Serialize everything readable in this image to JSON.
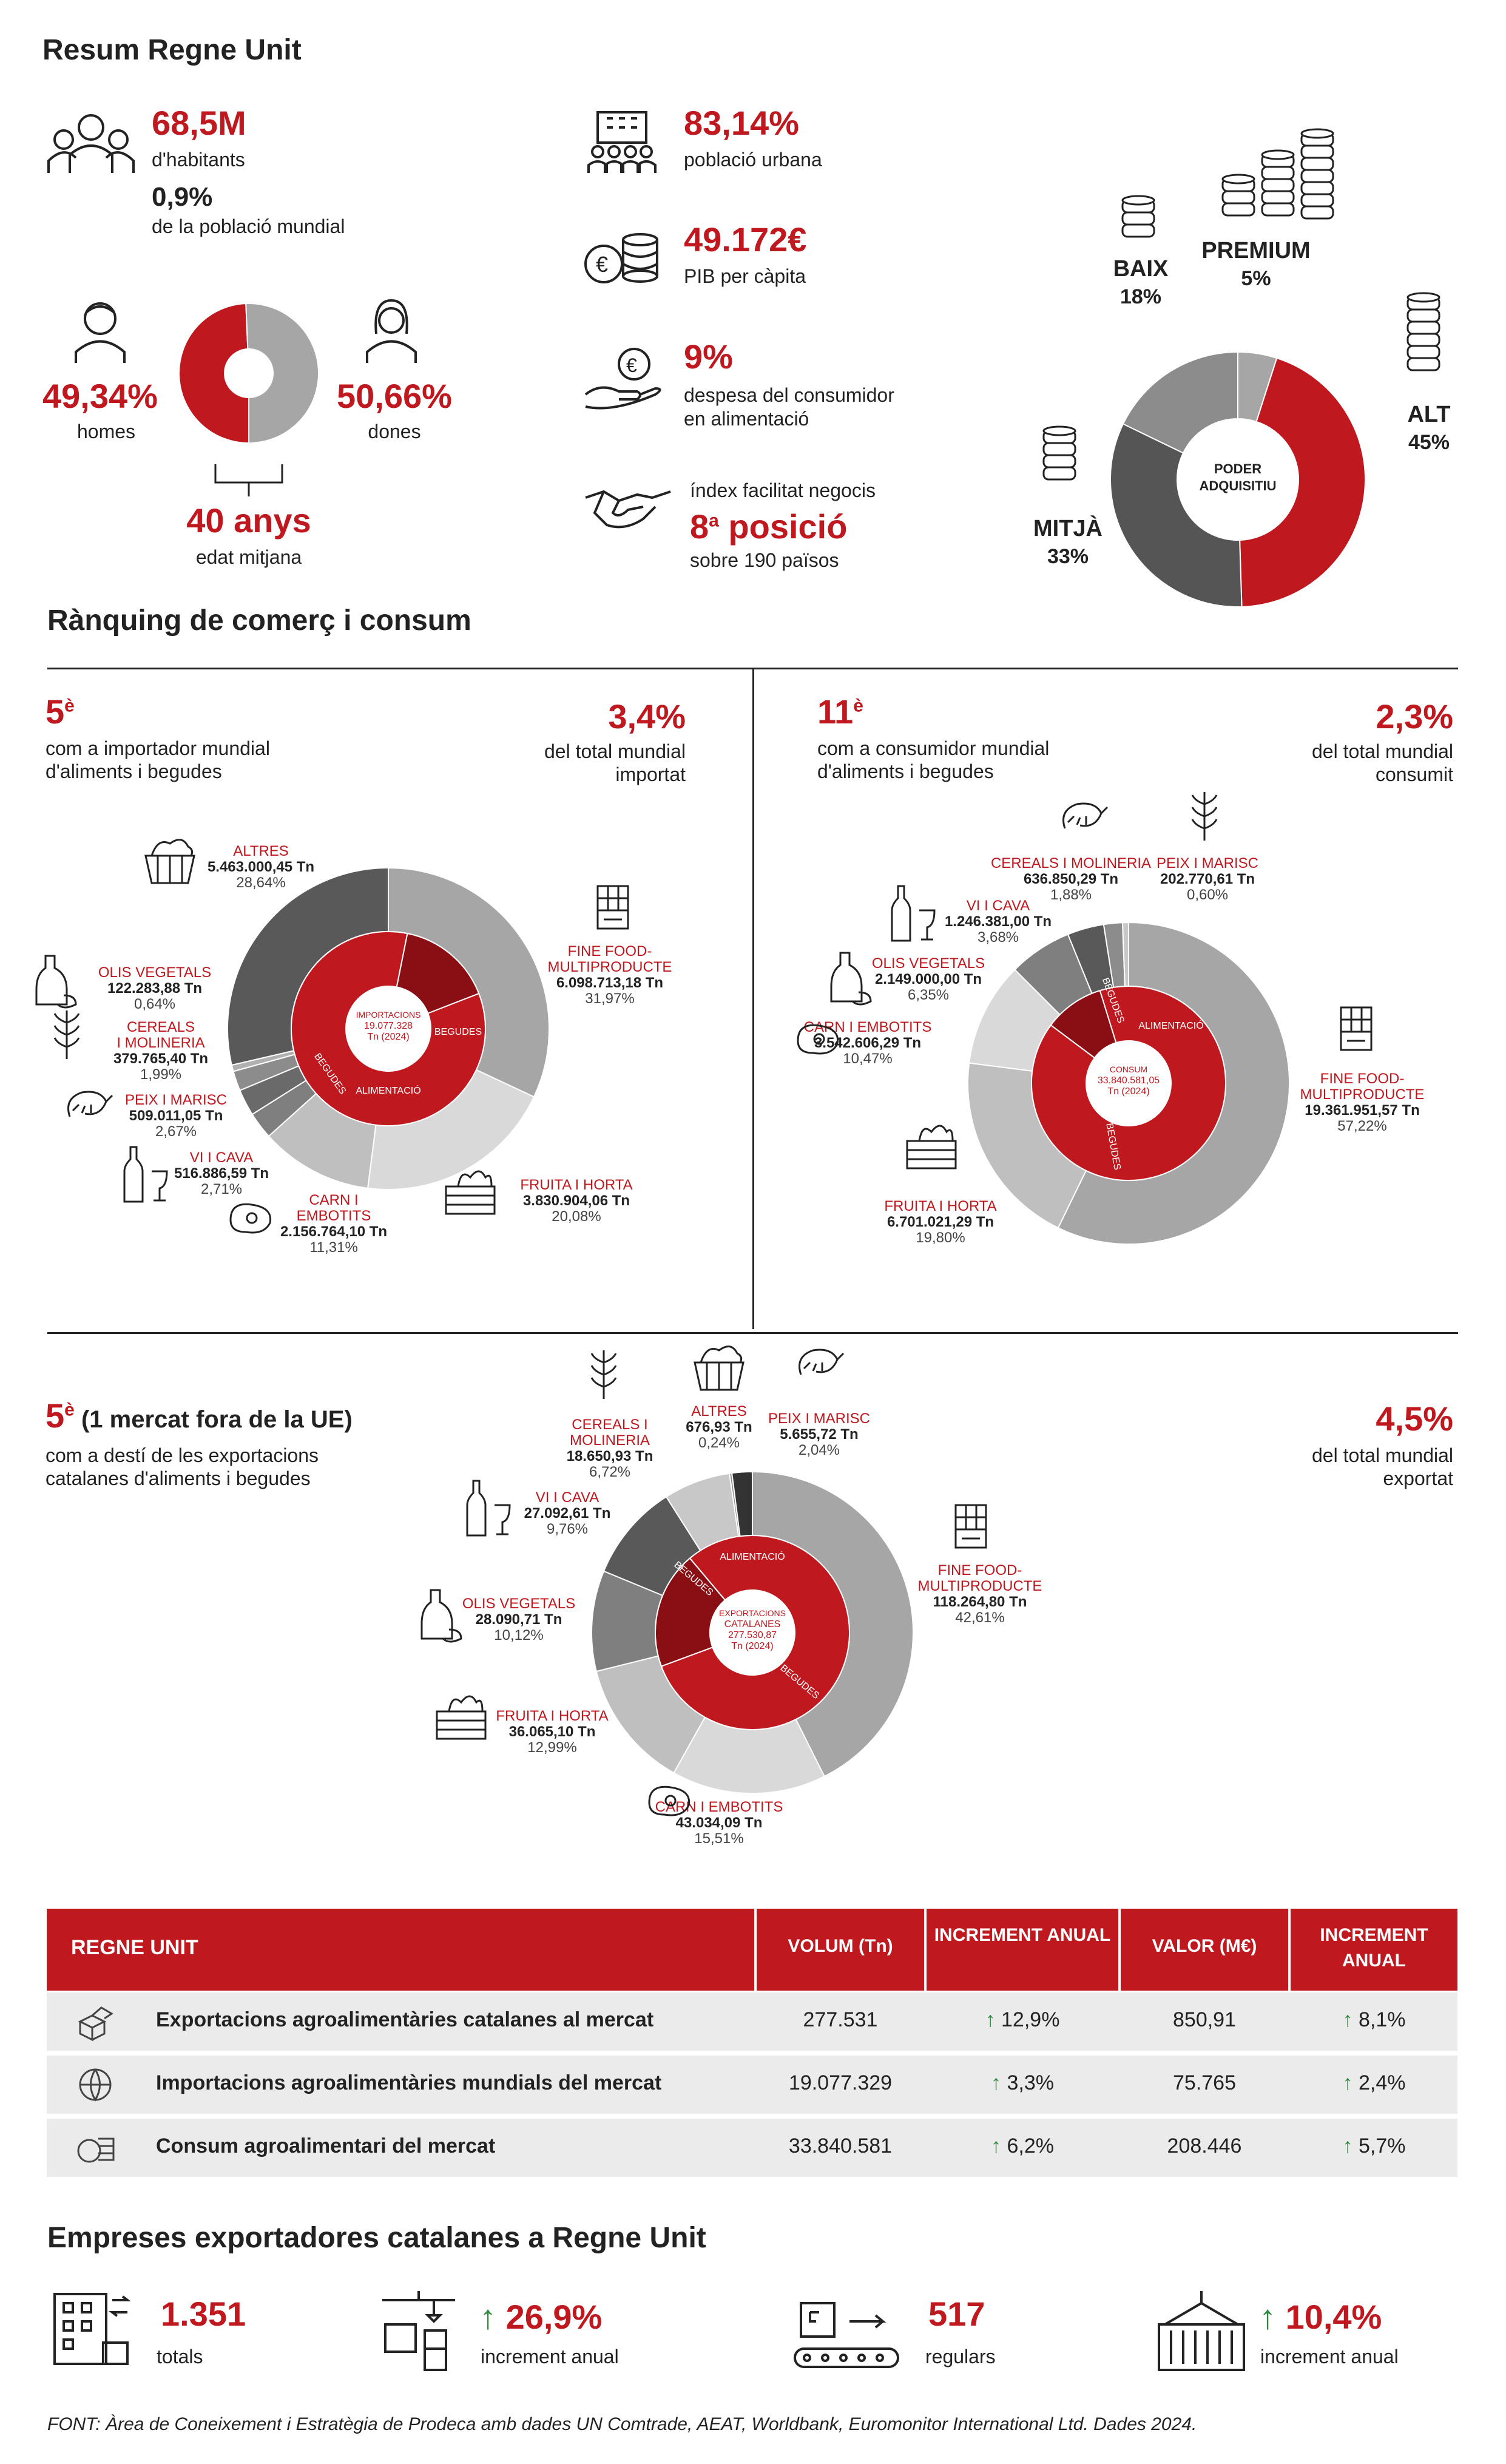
{
  "summary": {
    "title": "Resum Regne Unit",
    "habitants": {
      "value": "68,5M",
      "label": "d'habitants"
    },
    "world_share": {
      "value": "0,9%",
      "label": "de la població mundial"
    },
    "men": {
      "value": "49,34%",
      "label": "homes"
    },
    "women": {
      "value": "50,66%",
      "label": "dones"
    },
    "age": {
      "value": "40 anys",
      "label": "edat mitjana"
    },
    "urban": {
      "value": "83,14%",
      "label": "població urbana"
    },
    "gdp": {
      "value": "49.172€",
      "label": "PIB per càpita"
    },
    "food_spend": {
      "value": "9%",
      "label1": "despesa del consumidor",
      "label2": "en alimentació"
    },
    "business": {
      "label_top": "índex facilitat negocis",
      "value": "8",
      "sup": "a",
      "value_rest": " posició",
      "label": "sobre 190 països"
    }
  },
  "ranking": {
    "title": "Rànquing de comerç i consum",
    "imports": {
      "rank": "5",
      "sup": "è",
      "label1": "com a importador mundial",
      "label2": "d'aliments i begudes",
      "share": "3,4%",
      "share_l1": "del total mundial",
      "share_l2": "importat"
    },
    "consumption": {
      "rank": "11",
      "sup": "è",
      "label1": "com a consumidor mundial",
      "label2": "d'aliments i begudes",
      "share": "2,3%",
      "share_l1": "del total mundial",
      "share_l2": "consumit"
    },
    "exports": {
      "rank": "5",
      "sup": "è",
      "rank_rest": " (1 mercat fora de la UE)",
      "label1": "com a destí de les exportacions",
      "label2": "catalanes d'aliments i begudes",
      "share": "4,5%",
      "share_l1": "del total mundial",
      "share_l2": "exportat"
    }
  },
  "chart_data": [
    {
      "type": "pie",
      "title": "PODER ADQUISITIU",
      "categories": [
        "PREMIUM",
        "ALT",
        "MITJÀ",
        "BAIX"
      ],
      "values": [
        5,
        45,
        33,
        18
      ],
      "labels": [
        "5%",
        "45%",
        "33%",
        "18%"
      ],
      "colors": [
        "#a6a6a6",
        "#c0181f",
        "#555555",
        "#8c8c8c"
      ]
    },
    {
      "type": "pie",
      "title": "Homes / Dones",
      "categories": [
        "homes",
        "dones"
      ],
      "values": [
        49.34,
        50.66
      ],
      "colors": [
        "#c0181f",
        "#a6a6a6"
      ]
    },
    {
      "type": "pie",
      "center": [
        "IMPORTACIONS",
        "19.077.328",
        "Tn (2024)"
      ],
      "inner": [
        {
          "name": "ALIMENTACIÓ",
          "value": 84.05
        },
        {
          "name": "BEGUDES",
          "value": 15.95
        }
      ],
      "categories": [
        "FINE FOOD-MULTIPRODUCTE",
        "FRUITA I HORTA",
        "CARN I EMBOTITS",
        "VI I CAVA",
        "PEIX I MARISC",
        "CEREALS I MOLINERIA",
        "OLIS VEGETALS",
        "ALTRES"
      ],
      "values": [
        31.97,
        20.08,
        11.31,
        2.71,
        2.67,
        1.99,
        0.64,
        28.64
      ],
      "tonnes": [
        "6.098.713,18 Tn",
        "3.830.904,06 Tn",
        "2.156.764,10 Tn",
        "516.886,59 Tn",
        "509.011,05 Tn",
        "379.765,40 Tn",
        "122.283,88 Tn",
        "5.463.000,45 Tn"
      ],
      "pct_labels": [
        "31,97%",
        "20,08%",
        "11,31%",
        "2,71%",
        "2,67%",
        "1,99%",
        "0,64%",
        "28,64%"
      ],
      "colors": [
        "#a6a6a6",
        "#d9d9d9",
        "#bfbfbf",
        "#7f7f7f",
        "#6a6a6a",
        "#8c8c8c",
        "#b0b0b0",
        "#595959"
      ]
    },
    {
      "type": "pie",
      "center": [
        "CONSUM",
        "33.840.581,05",
        "Tn (2024)"
      ],
      "inner": [
        {
          "name": "ALIMENTACIÓ",
          "value": 90
        },
        {
          "name": "BEGUDES",
          "value": 10
        }
      ],
      "categories": [
        "FINE FOOD-MULTIPRODUCTE",
        "FRUITA I HORTA",
        "CARN I EMBOTITS",
        "OLIS VEGETALS",
        "VI I CAVA",
        "CEREALS I MOLINERIA",
        "PEIX I MARISC"
      ],
      "values": [
        57.22,
        19.8,
        10.47,
        6.35,
        3.68,
        1.88,
        0.6
      ],
      "tonnes": [
        "19.361.951,57 Tn",
        "6.701.021,29 Tn",
        "3.542.606,29 Tn",
        "2.149.000,00 Tn",
        "1.246.381,00 Tn",
        "636.850,29 Tn",
        "202.770,61 Tn"
      ],
      "pct_labels": [
        "57,22%",
        "19,80%",
        "10,47%",
        "6,35%",
        "3,68%",
        "1,88%",
        "0,60%"
      ],
      "colors": [
        "#a6a6a6",
        "#bfbfbf",
        "#d9d9d9",
        "#7f7f7f",
        "#595959",
        "#8c8c8c",
        "#c8c8c8"
      ]
    },
    {
      "type": "pie",
      "center": [
        "EXPORTACIONS",
        "CATALANES",
        "277.530,87",
        "Tn (2024)"
      ],
      "inner": [
        {
          "name": "ALIMENTACIÓ",
          "value": 80.5
        },
        {
          "name": "BEGUDES",
          "value": 19.5
        }
      ],
      "categories": [
        "FINE FOOD-MULTIPRODUCTE",
        "CARN I EMBOTITS",
        "FRUITA I HORTA",
        "OLIS VEGETALS",
        "VI I CAVA",
        "CEREALS I MOLINERIA",
        "ALTRES",
        "PEIX I MARISC"
      ],
      "values": [
        42.61,
        15.51,
        12.99,
        10.12,
        9.76,
        6.72,
        0.24,
        2.04
      ],
      "tonnes": [
        "118.264,80 Tn",
        "43.034,09 Tn",
        "36.065,10 Tn",
        "28.090,71 Tn",
        "27.092,61 Tn",
        "18.650,93 Tn",
        "676,93 Tn",
        "5.655,72 Tn"
      ],
      "pct_labels": [
        "42,61%",
        "15,51%",
        "12,99%",
        "10,12%",
        "9,76%",
        "6,72%",
        "0,24%",
        "2,04%"
      ],
      "colors": [
        "#a6a6a6",
        "#d9d9d9",
        "#bfbfbf",
        "#7f7f7f",
        "#595959",
        "#c8c8c8",
        "#8c8c8c",
        "#333333"
      ]
    }
  ],
  "table": {
    "headers": [
      "REGNE UNIT",
      "VOLUM (Tn)",
      "INCREMENT ANUAL",
      "VALOR (M€)",
      "INCREMENT ANUAL"
    ],
    "rows": [
      {
        "label": "Exportacions agroalimentàries catalanes al mercat",
        "volum": "277.531",
        "inc1": "12,9%",
        "valor": "850,91",
        "inc2": "8,1%"
      },
      {
        "label": "Importacions agroalimentàries mundials del mercat",
        "volum": "19.077.329",
        "inc1": "3,3%",
        "valor": "75.765",
        "inc2": "2,4%"
      },
      {
        "label": "Consum agroalimentari del mercat",
        "volum": "33.840.581",
        "inc1": "6,2%",
        "valor": "208.446",
        "inc2": "5,7%"
      }
    ]
  },
  "companies": {
    "title": "Empreses exportadores catalanes a Regne Unit",
    "total": {
      "value": "1.351",
      "label": "totals"
    },
    "growth": {
      "value": "26,9%",
      "label": "increment anual"
    },
    "regular": {
      "value": "517",
      "label": "regulars"
    },
    "regular_growth": {
      "value": "10,4%",
      "label": "increment anual"
    }
  },
  "source": "FONT:  Àrea de Coneixement i Estratègia de Prodeca amb dades UN Comtrade, AEAT, Worldbank, Euromonitor International Ltd. Dades  2024.",
  "labels": {
    "poder": [
      "PODER",
      "ADQUISITIU"
    ],
    "premium": "PREMIUM",
    "alt": "ALT",
    "mitja": "MITJÀ",
    "baix": "BAIX",
    "premium_pct": "5%",
    "alt_pct": "45%",
    "mitja_pct": "33%",
    "baix_pct": "18%",
    "inner_food": "ALIMENTACIÓ",
    "inner_drinks": "BEGUDES"
  },
  "icons": [
    "people-icon",
    "city-icon",
    "coins-icon",
    "hand-money-icon",
    "handshake-icon",
    "man-icon",
    "woman-icon",
    "coin-stack-icon",
    "basket-icon",
    "oil-icon",
    "wheat-icon",
    "shrimp-icon",
    "wine-icon",
    "steak-icon",
    "crate-icon",
    "chocolate-icon",
    "boxes-icon",
    "globe-icon",
    "building-icon",
    "crane-icon",
    "conveyor-icon",
    "container-icon"
  ]
}
